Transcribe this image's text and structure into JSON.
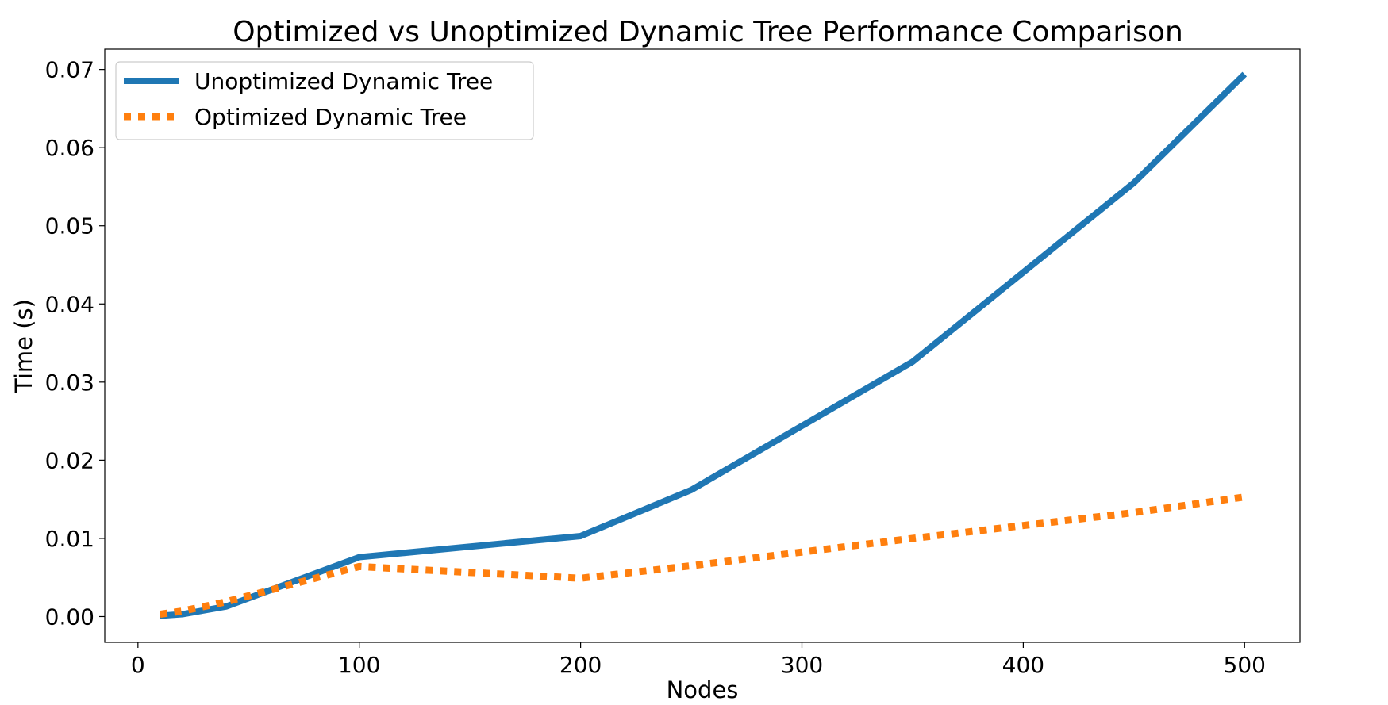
{
  "chart_data": {
    "type": "line",
    "title": "Optimized vs Unoptimized Dynamic Tree Performance Comparison",
    "xlabel": "Nodes",
    "ylabel": "Time (s)",
    "xlim": [
      -15,
      525
    ],
    "ylim": [
      -0.0033,
      0.0726
    ],
    "xticks": [
      0,
      100,
      200,
      300,
      400,
      500
    ],
    "xtick_labels": [
      "0",
      "100",
      "200",
      "300",
      "400",
      "500"
    ],
    "yticks": [
      0.0,
      0.01,
      0.02,
      0.03,
      0.04,
      0.05,
      0.06,
      0.07
    ],
    "ytick_labels": [
      "0.00",
      "0.01",
      "0.02",
      "0.03",
      "0.04",
      "0.05",
      "0.06",
      "0.07"
    ],
    "grid": false,
    "legend_position": "top-left",
    "series": [
      {
        "name": "Unoptimized Dynamic Tree",
        "color": "#1f77b4",
        "style": "solid",
        "x": [
          10,
          20,
          40,
          100,
          200,
          250,
          350,
          450,
          500
        ],
        "y": [
          0.0001,
          0.0003,
          0.0013,
          0.0076,
          0.0103,
          0.0162,
          0.0326,
          0.0555,
          0.0694
        ]
      },
      {
        "name": "Optimized Dynamic Tree",
        "color": "#ff7f0e",
        "style": "dotted",
        "x": [
          10,
          20,
          40,
          100,
          200,
          250,
          350,
          450,
          500
        ],
        "y": [
          0.0003,
          0.0007,
          0.0019,
          0.0064,
          0.0049,
          0.0065,
          0.01,
          0.0133,
          0.0153
        ]
      }
    ]
  }
}
